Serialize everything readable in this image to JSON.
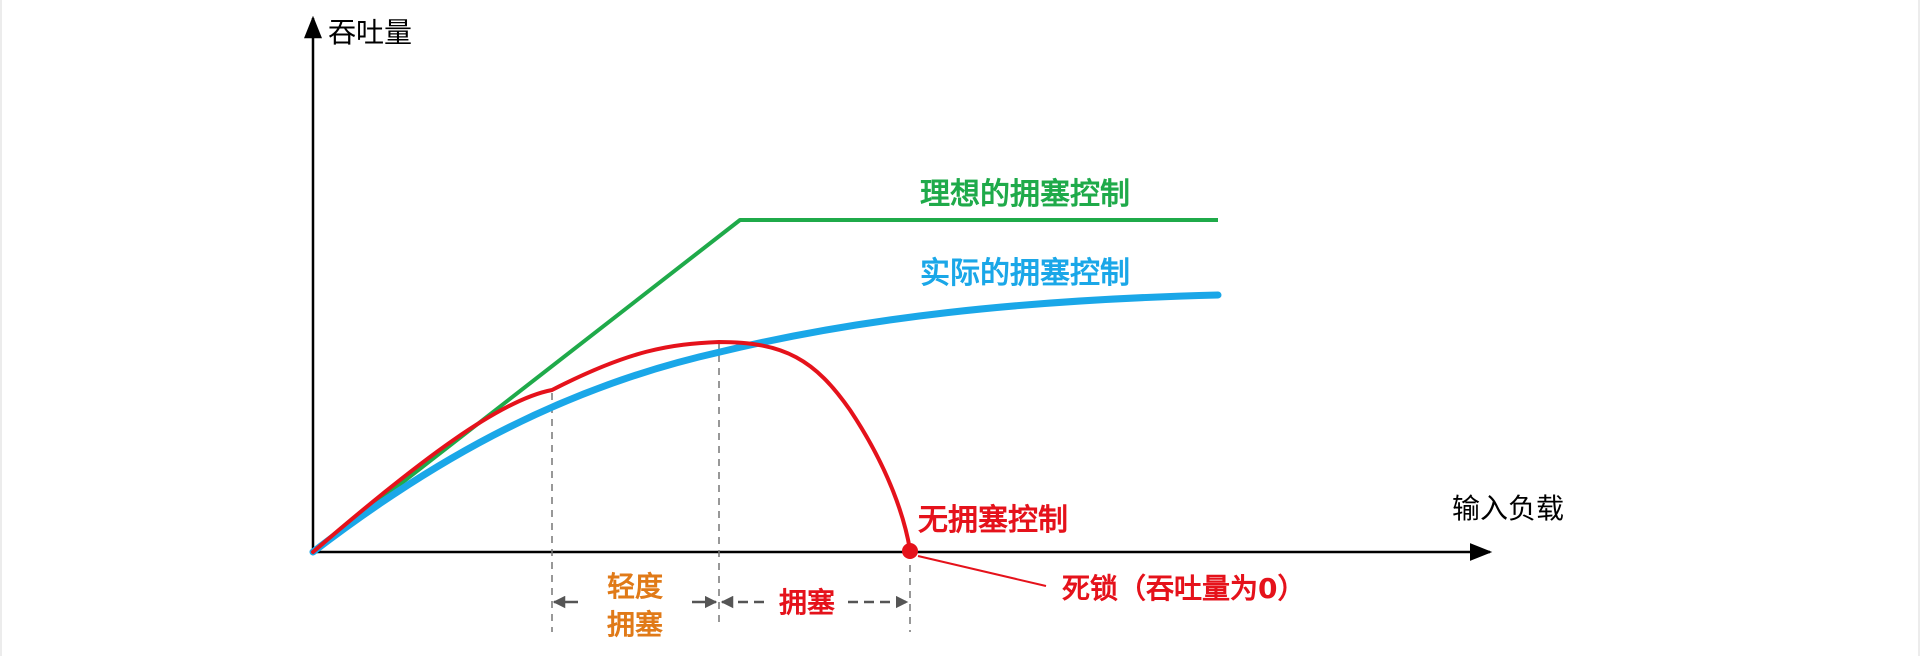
{
  "axes": {
    "y_label": "吞吐量",
    "x_label": "输入负载"
  },
  "curves": {
    "ideal": {
      "label": "理想的拥塞控制",
      "color": "#1faa4a"
    },
    "actual": {
      "label": "实际的拥塞控制",
      "color": "#1aa7e8"
    },
    "none": {
      "label": "无拥塞控制",
      "color": "#e5121b"
    }
  },
  "regions": {
    "light": {
      "line1": "轻度",
      "line2": "拥塞",
      "color": "#e07a18"
    },
    "congestion": {
      "label": "拥塞",
      "color": "#e5121b"
    }
  },
  "deadlock": {
    "label": "死锁（吞吐量为0）",
    "color": "#e5121b"
  },
  "colors": {
    "axis": "#000000",
    "guide": "#777777",
    "arrow": "#555555"
  }
}
